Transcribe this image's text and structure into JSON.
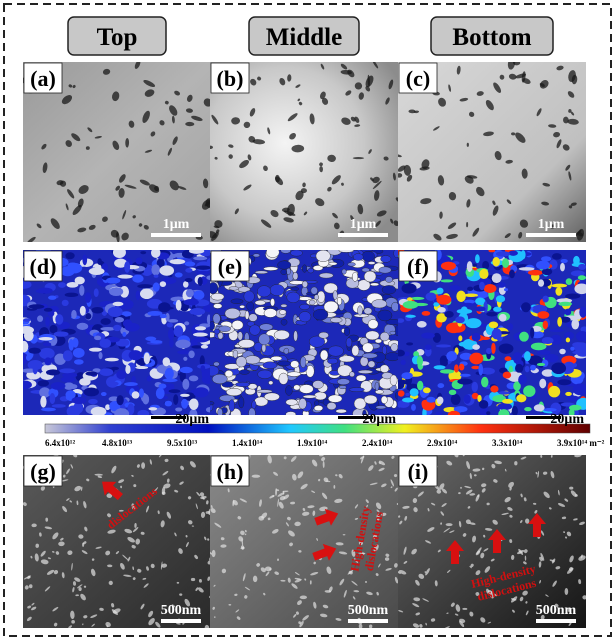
{
  "headers": [
    "Top",
    "Middle",
    "Bottom"
  ],
  "panels": [
    {
      "label": "(a)",
      "scale_bar": "1μm"
    },
    {
      "label": "(b)",
      "scale_bar": "1μm"
    },
    {
      "label": "(c)",
      "scale_bar": "1μm"
    },
    {
      "label": "(d)",
      "scale_bar": "20μm"
    },
    {
      "label": "(e)",
      "scale_bar": "20μm"
    },
    {
      "label": "(f)",
      "scale_bar": "20μm"
    },
    {
      "label": "(g)",
      "scale_bar": "500nm"
    },
    {
      "label": "(h)",
      "scale_bar": "500nm"
    },
    {
      "label": "(i)",
      "scale_bar": "500nm"
    }
  ],
  "colorbar": {
    "ticks": [
      "6.4x10¹²",
      "4.8x10¹³",
      "9.5x10¹³",
      "1.4x10¹⁴",
      "1.9x10¹⁴",
      "2.4x10¹⁴",
      "2.9x10¹⁴",
      "3.3x10¹⁴",
      "3.9x10¹⁴  m⁻²"
    ]
  },
  "annotations": [
    {
      "lines": [
        "dislocations"
      ]
    },
    {
      "lines": [
        "High-density",
        "dislocations"
      ]
    },
    {
      "lines": [
        "High-density",
        "dislocations"
      ]
    }
  ]
}
